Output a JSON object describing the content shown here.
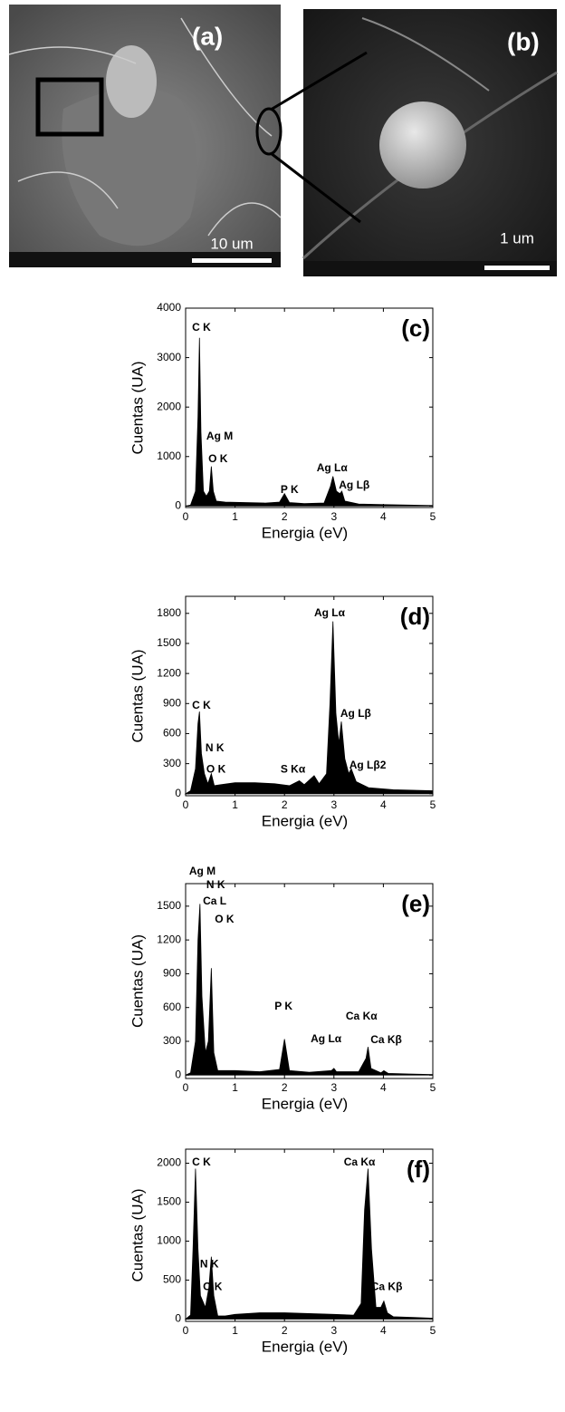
{
  "images": [
    {
      "label": "(a)",
      "scale_bar": "10 um"
    },
    {
      "label": "(b)",
      "scale_bar": "1 um"
    }
  ],
  "chart_data": [
    {
      "type": "area",
      "panel_label": "(c)",
      "x_label": "Energia (eV)",
      "y_label": "Cuentas (UA)",
      "color": "#000000",
      "x": [
        0,
        0.1,
        0.2,
        0.25,
        0.28,
        0.31,
        0.36,
        0.42,
        0.48,
        0.52,
        0.56,
        0.62,
        0.8,
        1.2,
        1.6,
        1.9,
        2.0,
        2.1,
        2.4,
        2.8,
        2.93,
        2.98,
        3.05,
        3.12,
        3.16,
        3.22,
        3.5,
        4,
        4.5,
        5
      ],
      "values": [
        0,
        20,
        300,
        1800,
        3400,
        1500,
        300,
        200,
        300,
        800,
        300,
        100,
        80,
        70,
        60,
        80,
        250,
        70,
        50,
        60,
        400,
        600,
        300,
        250,
        300,
        100,
        40,
        30,
        20,
        10
      ],
      "xlim": [
        0,
        5
      ],
      "xticks": [
        0,
        1,
        2,
        3,
        4,
        5
      ],
      "ylim": [
        -30,
        4000
      ],
      "yticks": [
        0,
        1000,
        2000,
        3000,
        4000
      ],
      "annotations": [
        {
          "text": "C K",
          "x": 0.13,
          "y": 3600
        },
        {
          "text": "Ag M",
          "x": 0.42,
          "y": 1400
        },
        {
          "text": "O K",
          "x": 0.46,
          "y": 940
        },
        {
          "text": "P K",
          "x": 1.92,
          "y": 320
        },
        {
          "text": "Ag Lα",
          "x": 2.65,
          "y": 760
        },
        {
          "text": "Ag Lβ",
          "x": 3.1,
          "y": 410
        }
      ]
    },
    {
      "type": "area",
      "panel_label": "(d)",
      "x_label": "Energia (eV)",
      "y_label": "Cuentas (UA)",
      "color": "#000000",
      "x": [
        0,
        0.1,
        0.2,
        0.25,
        0.28,
        0.32,
        0.38,
        0.45,
        0.52,
        0.58,
        0.7,
        1,
        1.4,
        1.8,
        2.1,
        2.3,
        2.4,
        2.6,
        2.7,
        2.85,
        2.92,
        2.98,
        3.04,
        3.1,
        3.15,
        3.22,
        3.3,
        3.35,
        3.45,
        3.7,
        4.2,
        5
      ],
      "values": [
        0,
        30,
        250,
        700,
        820,
        400,
        200,
        100,
        200,
        80,
        90,
        110,
        110,
        100,
        80,
        130,
        90,
        180,
        100,
        200,
        900,
        1720,
        800,
        500,
        720,
        350,
        200,
        250,
        120,
        60,
        40,
        30
      ],
      "xlim": [
        0,
        5
      ],
      "xticks": [
        0,
        1,
        2,
        3,
        4,
        5
      ],
      "ylim": [
        -20,
        1970
      ],
      "yticks": [
        0,
        300,
        600,
        900,
        1200,
        1500,
        1800
      ],
      "annotations": [
        {
          "text": "Ag Lα",
          "x": 2.6,
          "y": 1800
        },
        {
          "text": "C K",
          "x": 0.13,
          "y": 875
        },
        {
          "text": "Ag Lβ",
          "x": 3.13,
          "y": 795
        },
        {
          "text": "N K",
          "x": 0.4,
          "y": 450
        },
        {
          "text": "O K",
          "x": 0.42,
          "y": 240
        },
        {
          "text": "S Kα",
          "x": 1.92,
          "y": 240
        },
        {
          "text": "Ag Lβ2",
          "x": 3.31,
          "y": 280
        }
      ]
    },
    {
      "type": "area",
      "panel_label": "(e)",
      "x_label": "Energia (eV)",
      "y_label": "Cuentas (UA)",
      "color": "#000000",
      "x": [
        0,
        0.1,
        0.2,
        0.25,
        0.29,
        0.33,
        0.4,
        0.46,
        0.52,
        0.57,
        0.65,
        1,
        1.5,
        1.9,
        2.0,
        2.1,
        2.5,
        2.95,
        3.0,
        3.05,
        3.5,
        3.65,
        3.69,
        3.75,
        3.95,
        4.01,
        4.1,
        4.5,
        5
      ],
      "values": [
        0,
        20,
        300,
        1200,
        1520,
        700,
        200,
        300,
        950,
        200,
        40,
        40,
        30,
        50,
        320,
        40,
        25,
        40,
        60,
        30,
        30,
        150,
        250,
        60,
        20,
        40,
        15,
        10,
        5
      ],
      "xlim": [
        0,
        5
      ],
      "xticks": [
        0,
        1,
        2,
        3,
        4,
        5
      ],
      "ylim": [
        -30,
        1700
      ],
      "yticks": [
        0,
        300,
        600,
        900,
        1200,
        1500
      ],
      "annotations": [
        {
          "text": "Ag M",
          "x": 0.07,
          "y": 1805
        },
        {
          "text": "N K",
          "x": 0.42,
          "y": 1684
        },
        {
          "text": "Ca L",
          "x": 0.35,
          "y": 1540
        },
        {
          "text": "O K",
          "x": 0.59,
          "y": 1378
        },
        {
          "text": "P K",
          "x": 1.8,
          "y": 606
        },
        {
          "text": "Ag Lα",
          "x": 2.53,
          "y": 316
        },
        {
          "text": "Ca Kα",
          "x": 3.24,
          "y": 517
        },
        {
          "text": "Ca Kβ",
          "x": 3.74,
          "y": 308
        }
      ]
    },
    {
      "type": "area",
      "panel_label": "(f)",
      "x_label": "Energia (eV)",
      "y_label": "Cuentas (UA)",
      "color": "#000000",
      "x": [
        0,
        0.1,
        0.15,
        0.2,
        0.25,
        0.3,
        0.4,
        0.47,
        0.52,
        0.57,
        0.65,
        0.8,
        1,
        1.5,
        2,
        2.5,
        3,
        3.4,
        3.55,
        3.62,
        3.69,
        3.76,
        3.85,
        3.95,
        4.01,
        4.08,
        4.2,
        4.6,
        5
      ],
      "values": [
        0,
        50,
        900,
        1930,
        900,
        300,
        150,
        400,
        800,
        300,
        40,
        40,
        60,
        80,
        80,
        70,
        60,
        50,
        200,
        1400,
        1930,
        900,
        150,
        150,
        230,
        80,
        30,
        20,
        10
      ],
      "xlim": [
        0,
        5
      ],
      "xticks": [
        0,
        1,
        2,
        3,
        4,
        5
      ],
      "ylim": [
        -30,
        2180
      ],
      "yticks": [
        0,
        500,
        1000,
        1500,
        2000
      ],
      "annotations": [
        {
          "text": "C K",
          "x": 0.13,
          "y": 2005
        },
        {
          "text": "N K",
          "x": 0.29,
          "y": 700
        },
        {
          "text": "O K",
          "x": 0.35,
          "y": 410
        },
        {
          "text": "Ca Kα",
          "x": 3.2,
          "y": 2005
        },
        {
          "text": "Ca Kβ",
          "x": 3.75,
          "y": 410
        }
      ]
    }
  ]
}
